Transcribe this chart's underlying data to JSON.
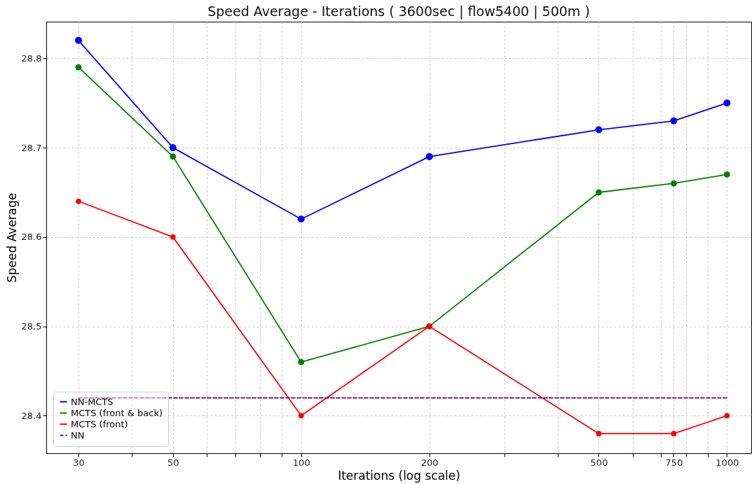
{
  "chart_data": {
    "type": "line",
    "title": "Speed Average - Iterations ( 3600sec | flow5400 | 500m )",
    "xlabel": "Iterations (log scale)",
    "ylabel": "Speed Average",
    "x": [
      30,
      50,
      100,
      200,
      500,
      750,
      1000
    ],
    "series": [
      {
        "name": "NN-MCTS",
        "color": "#0000ff",
        "values": [
          28.82,
          28.7,
          28.62,
          28.69,
          28.72,
          28.73,
          28.75
        ]
      },
      {
        "name": "MCTS (front & back)",
        "color": "#008000",
        "values": [
          28.79,
          28.69,
          28.46,
          28.5,
          28.65,
          28.66,
          28.67
        ]
      },
      {
        "name": "MCTS (front)",
        "color": "#ff0000",
        "values": [
          28.64,
          28.6,
          28.4,
          28.5,
          28.38,
          28.38,
          28.4
        ]
      },
      {
        "name": "NN",
        "color": "#800080",
        "x": [
          30,
          1000
        ],
        "values": [
          28.42,
          28.42
        ],
        "line_style": "dashed",
        "marker": "none"
      }
    ],
    "log": "x",
    "xlim": [
      25.2,
      1140
    ],
    "ylim": [
      28.358,
      28.841
    ],
    "xticks": [
      30,
      {
        "value": 40,
        "label": null
      },
      50,
      {
        "value": 60,
        "label": null
      },
      {
        "value": 70,
        "label": null
      },
      {
        "value": 80,
        "label": null
      },
      {
        "value": 90,
        "label": null
      },
      100,
      200,
      {
        "value": 300,
        "label": null
      },
      {
        "value": 400,
        "label": null
      },
      500,
      {
        "value": 600,
        "label": null
      },
      {
        "value": 700,
        "label": null
      },
      750,
      {
        "value": 800,
        "label": null
      },
      {
        "value": 900,
        "label": null
      },
      1000
    ],
    "yticks": [
      28.4,
      28.5,
      28.6,
      28.7,
      28.8
    ],
    "grid": true,
    "legend": "bottom left",
    "marker": "circle",
    "line_style": "solid"
  }
}
